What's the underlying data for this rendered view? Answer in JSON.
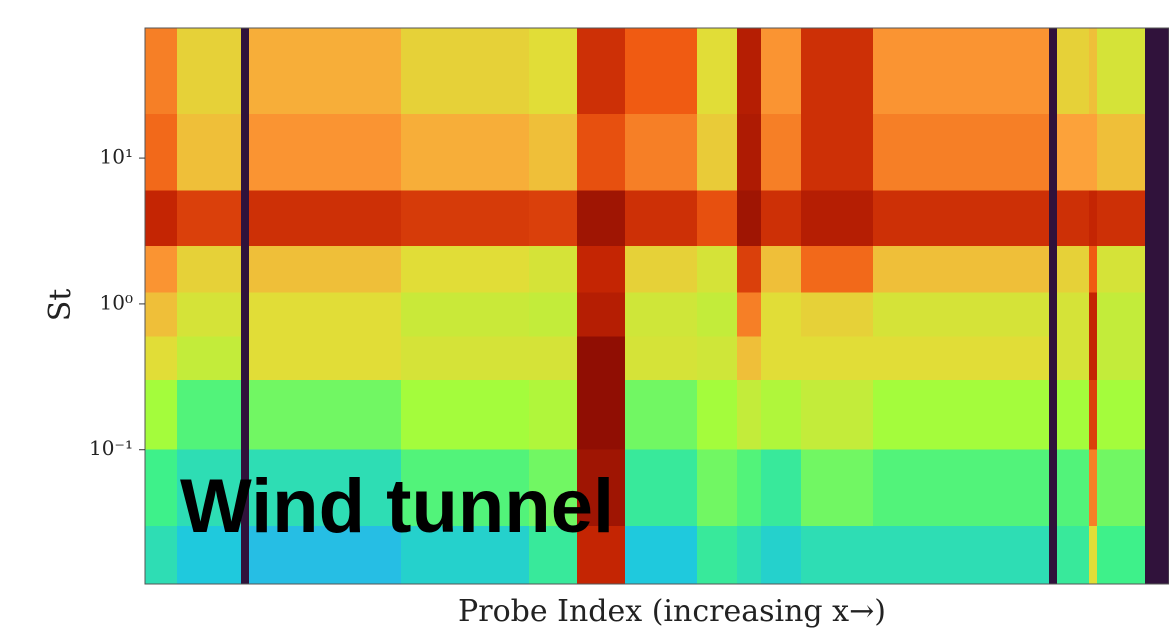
{
  "chart_data": {
    "type": "heatmap",
    "ylabel": "St",
    "xlabel": "Probe Index (increasing x→)",
    "annotation": "Wind tunnel",
    "ylog": true,
    "colormap": "turbo",
    "xlim": [
      0,
      64
    ],
    "ylim": [
      0.012,
      78
    ],
    "yticks": [
      {
        "value": 0.1,
        "label": "10⁻¹"
      },
      {
        "value": 1,
        "label": "10⁰"
      },
      {
        "value": 10,
        "label": "10¹"
      }
    ],
    "x_edges": [
      0,
      2,
      6,
      6.5,
      16,
      24,
      27,
      30,
      34.5,
      37,
      38.5,
      41,
      45.5,
      56.5,
      57,
      59,
      59.5,
      62.5,
      64
    ],
    "y_edges": [
      78,
      20,
      6,
      2.5,
      1.2,
      0.6,
      0.3,
      0.1,
      0.03,
      0.012
    ],
    "z": [
      [
        0.75,
        0.62,
        0,
        0.68,
        0.62,
        0.6,
        0.88,
        0.8,
        0.6,
        0.92,
        0.72,
        0.88,
        0.72,
        0,
        0.62,
        0.65,
        0.58,
        0
      ],
      [
        0.78,
        0.65,
        0,
        0.72,
        0.68,
        0.65,
        0.82,
        0.75,
        0.63,
        0.93,
        0.75,
        0.88,
        0.75,
        0,
        0.7,
        0.7,
        0.65,
        0
      ],
      [
        0.9,
        0.85,
        0,
        0.88,
        0.86,
        0.85,
        0.95,
        0.88,
        0.82,
        0.95,
        0.88,
        0.92,
        0.88,
        0,
        0.88,
        0.9,
        0.88,
        0
      ],
      [
        0.72,
        0.62,
        0,
        0.65,
        0.6,
        0.58,
        0.9,
        0.62,
        0.58,
        0.85,
        0.65,
        0.78,
        0.65,
        0,
        0.62,
        0.8,
        0.58,
        0
      ],
      [
        0.65,
        0.58,
        0,
        0.6,
        0.56,
        0.55,
        0.92,
        0.57,
        0.55,
        0.75,
        0.6,
        0.62,
        0.58,
        0,
        0.58,
        0.9,
        0.55,
        0
      ],
      [
        0.6,
        0.55,
        0,
        0.6,
        0.58,
        0.58,
        0.97,
        0.58,
        0.57,
        0.65,
        0.6,
        0.6,
        0.6,
        0,
        0.58,
        0.9,
        0.55,
        0
      ],
      [
        0.5,
        0.42,
        0,
        0.45,
        0.5,
        0.52,
        0.97,
        0.45,
        0.5,
        0.55,
        0.52,
        0.55,
        0.5,
        0,
        0.5,
        0.85,
        0.5,
        0
      ],
      [
        0.4,
        0.35,
        0,
        0.35,
        0.42,
        0.45,
        0.95,
        0.38,
        0.45,
        0.42,
        0.38,
        0.45,
        0.42,
        0,
        0.42,
        0.75,
        0.45,
        0
      ],
      [
        0.35,
        0.3,
        0,
        0.28,
        0.32,
        0.38,
        0.9,
        0.3,
        0.38,
        0.35,
        0.32,
        0.35,
        0.35,
        0,
        0.38,
        0.6,
        0.4,
        0
      ]
    ]
  }
}
